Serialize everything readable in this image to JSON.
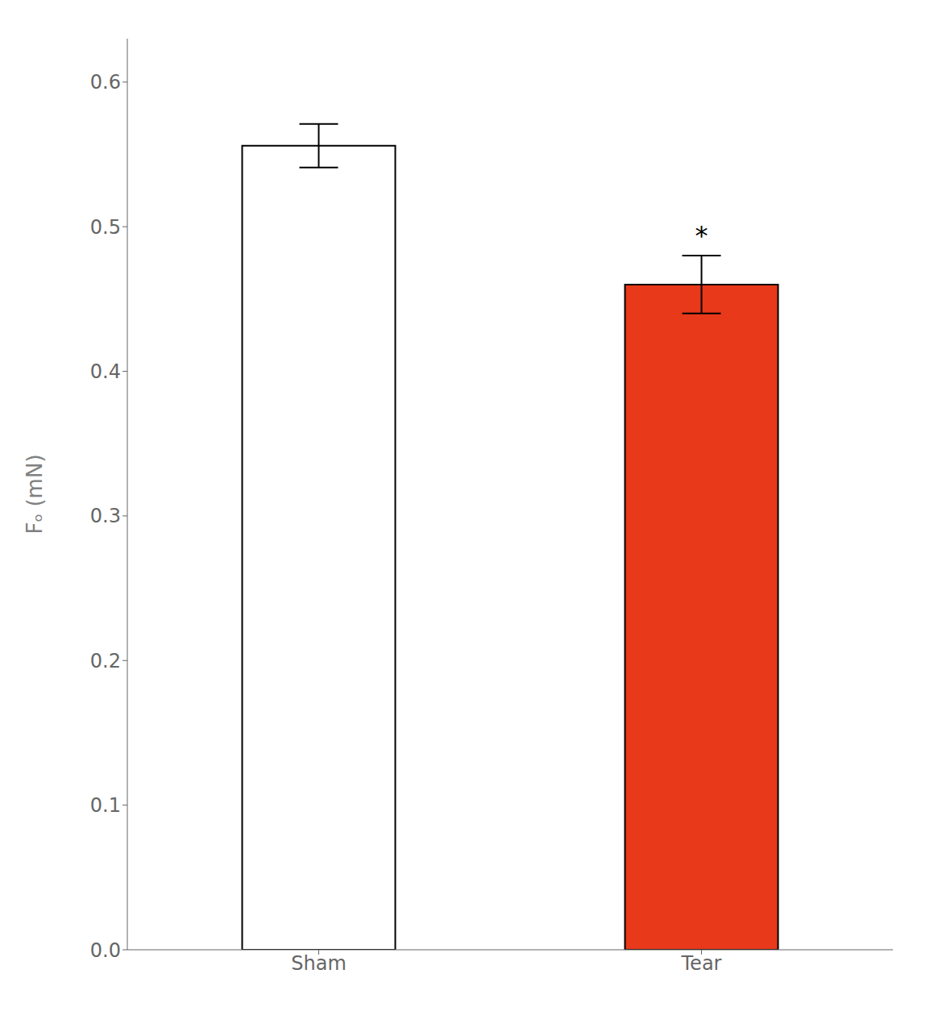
{
  "chart_data": {
    "type": "bar",
    "categories": [
      "Sham",
      "Tear"
    ],
    "values": [
      0.556,
      0.46
    ],
    "errors": [
      0.015,
      0.02
    ],
    "colors": [
      "#ffffff",
      "#e8391a"
    ],
    "ylabel": "Fₒ (mN)",
    "ylim": [
      0,
      0.63
    ],
    "yticks": [
      {
        "value": 0,
        "label": "0.0"
      },
      0.1,
      0.2,
      0.3,
      0.4,
      0.5,
      0.6
    ],
    "annotations": [
      {
        "text": "*",
        "x": "Tear",
        "y": 0.485
      }
    ],
    "grid": false
  }
}
